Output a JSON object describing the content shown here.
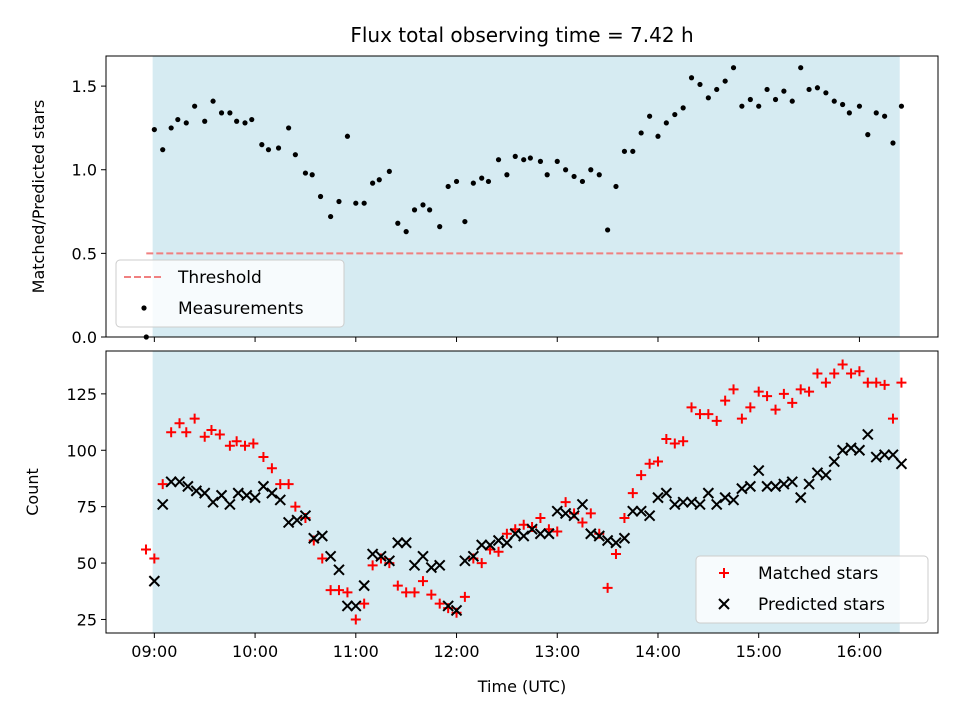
{
  "colors": {
    "shade": "#add8e6",
    "threshold": "#f08080",
    "matched": "#ff0000",
    "predicted": "#000000",
    "measurement": "#000000"
  },
  "chart_data": [
    {
      "type": "scatter",
      "title": "Flux total observing time = 7.42 h",
      "xlabel": "",
      "ylabel": "Matched/Predicted stars",
      "xlim": [
        8.52,
        16.78
      ],
      "ylim": [
        0,
        1.68
      ],
      "yticks": [
        0.0,
        0.5,
        1.0,
        1.5
      ],
      "ytick_labels": [
        "0.0",
        "0.5",
        "1.0",
        "1.5"
      ],
      "observing_window": [
        8.983,
        16.4
      ],
      "threshold": {
        "label": "Threshold",
        "value": 0.5,
        "x_range": [
          8.92,
          16.43
        ]
      },
      "legend": [
        "Threshold",
        "Measurements"
      ],
      "legend_position": "lower-left",
      "series": [
        {
          "name": "Measurements",
          "marker": "dot",
          "x": [
            8.92,
            9.0,
            9.083,
            9.167,
            9.233,
            9.317,
            9.4,
            9.5,
            9.583,
            9.667,
            9.75,
            9.817,
            9.9,
            9.967,
            10.067,
            10.133,
            10.233,
            10.333,
            10.4,
            10.5,
            10.567,
            10.65,
            10.75,
            10.833,
            10.917,
            11.0,
            11.083,
            11.167,
            11.233,
            11.333,
            11.417,
            11.5,
            11.583,
            11.667,
            11.733,
            11.833,
            11.917,
            12.0,
            12.083,
            12.167,
            12.25,
            12.317,
            12.417,
            12.5,
            12.583,
            12.667,
            12.733,
            12.833,
            12.9,
            13.0,
            13.083,
            13.167,
            13.25,
            13.333,
            13.417,
            13.5,
            13.583,
            13.667,
            13.75,
            13.833,
            13.917,
            14.0,
            14.083,
            14.167,
            14.25,
            14.333,
            14.417,
            14.5,
            14.583,
            14.667,
            14.75,
            14.833,
            14.917,
            15.0,
            15.083,
            15.167,
            15.25,
            15.333,
            15.417,
            15.5,
            15.583,
            15.667,
            15.75,
            15.833,
            15.9,
            16.0,
            16.083,
            16.167,
            16.25,
            16.333,
            16.417
          ],
          "y": [
            0.0,
            1.24,
            1.12,
            1.25,
            1.3,
            1.28,
            1.38,
            1.29,
            1.41,
            1.34,
            1.34,
            1.29,
            1.28,
            1.3,
            1.15,
            1.12,
            1.13,
            1.25,
            1.09,
            0.98,
            0.97,
            0.84,
            0.72,
            0.81,
            1.2,
            0.8,
            0.8,
            0.92,
            0.94,
            0.99,
            0.68,
            0.63,
            0.76,
            0.79,
            0.76,
            0.66,
            0.9,
            0.93,
            0.69,
            0.92,
            0.95,
            0.93,
            1.06,
            0.97,
            1.08,
            1.06,
            1.07,
            1.05,
            0.97,
            1.05,
            1.0,
            0.96,
            0.93,
            1.0,
            0.97,
            0.64,
            0.9,
            1.11,
            1.11,
            1.22,
            1.32,
            1.2,
            1.28,
            1.33,
            1.37,
            1.55,
            1.51,
            1.43,
            1.48,
            1.53,
            1.61,
            1.38,
            1.42,
            1.38,
            1.48,
            1.42,
            1.47,
            1.41,
            1.61,
            1.48,
            1.49,
            1.46,
            1.41,
            1.39,
            1.34,
            1.38,
            1.21,
            1.34,
            1.32,
            1.16,
            1.38
          ]
        }
      ]
    },
    {
      "type": "scatter",
      "title": "",
      "xlabel": "Time (UTC)",
      "ylabel": "Count",
      "xlim": [
        8.52,
        16.78
      ],
      "ylim": [
        19,
        144
      ],
      "xticks": [
        9,
        10,
        11,
        12,
        13,
        14,
        15,
        16
      ],
      "xtick_labels": [
        "09:00",
        "10:00",
        "11:00",
        "12:00",
        "13:00",
        "14:00",
        "15:00",
        "16:00"
      ],
      "yticks": [
        25,
        50,
        75,
        100,
        125
      ],
      "ytick_labels": [
        "25",
        "50",
        "75",
        "100",
        "125"
      ],
      "observing_window": [
        8.983,
        16.4
      ],
      "legend": [
        "Matched stars",
        "Predicted stars"
      ],
      "legend_position": "lower-right",
      "series": [
        {
          "name": "Matched stars",
          "marker": "plus",
          "x": [
            8.917,
            9.0,
            9.083,
            9.167,
            9.25,
            9.317,
            9.4,
            9.5,
            9.567,
            9.65,
            9.75,
            9.817,
            9.9,
            9.983,
            10.083,
            10.167,
            10.25,
            10.333,
            10.4,
            10.5,
            10.583,
            10.667,
            10.75,
            10.833,
            10.917,
            11.0,
            11.083,
            11.167,
            11.25,
            11.333,
            11.417,
            11.5,
            11.583,
            11.667,
            11.75,
            11.833,
            11.917,
            12.0,
            12.083,
            12.167,
            12.25,
            12.333,
            12.417,
            12.5,
            12.583,
            12.667,
            12.75,
            12.833,
            12.917,
            13.0,
            13.083,
            13.167,
            13.25,
            13.333,
            13.417,
            13.5,
            13.583,
            13.667,
            13.75,
            13.833,
            13.917,
            14.0,
            14.083,
            14.167,
            14.25,
            14.333,
            14.417,
            14.5,
            14.583,
            14.667,
            14.75,
            14.833,
            14.917,
            15.0,
            15.083,
            15.167,
            15.25,
            15.333,
            15.417,
            15.5,
            15.583,
            15.667,
            15.75,
            15.833,
            15.917,
            16.0,
            16.083,
            16.167,
            16.25,
            16.333,
            16.417
          ],
          "y": [
            56,
            52,
            85,
            108,
            112,
            108,
            114,
            106,
            109,
            107,
            102,
            104,
            102,
            103,
            97,
            92,
            85,
            85,
            75,
            70,
            60,
            52,
            38,
            38,
            37,
            25,
            32,
            49,
            52,
            50,
            40,
            37,
            37,
            42,
            36,
            32,
            30,
            28,
            35,
            52,
            50,
            56,
            55,
            63,
            65,
            67,
            66,
            70,
            65,
            64,
            77,
            72,
            68,
            72,
            63,
            39,
            54,
            70,
            81,
            89,
            94,
            95,
            105,
            103,
            104,
            119,
            116,
            116,
            113,
            122,
            127,
            114,
            119,
            126,
            124,
            118,
            125,
            121,
            127,
            126,
            134,
            130,
            134,
            138,
            134,
            135,
            130,
            130,
            129,
            114,
            130
          ]
        },
        {
          "name": "Predicted stars",
          "marker": "x",
          "x": [
            9.0,
            9.083,
            9.167,
            9.25,
            9.333,
            9.417,
            9.5,
            9.583,
            9.667,
            9.75,
            9.833,
            9.917,
            10.0,
            10.083,
            10.167,
            10.25,
            10.333,
            10.417,
            10.5,
            10.583,
            10.667,
            10.75,
            10.833,
            10.917,
            11.0,
            11.083,
            11.167,
            11.25,
            11.333,
            11.417,
            11.5,
            11.583,
            11.667,
            11.75,
            11.833,
            11.917,
            12.0,
            12.083,
            12.167,
            12.25,
            12.333,
            12.417,
            12.5,
            12.583,
            12.667,
            12.75,
            12.833,
            12.917,
            13.0,
            13.083,
            13.167,
            13.25,
            13.333,
            13.417,
            13.5,
            13.583,
            13.667,
            13.75,
            13.833,
            13.917,
            14.0,
            14.083,
            14.167,
            14.25,
            14.333,
            14.417,
            14.5,
            14.583,
            14.667,
            14.75,
            14.833,
            14.917,
            15.0,
            15.083,
            15.167,
            15.25,
            15.333,
            15.417,
            15.5,
            15.583,
            15.667,
            15.75,
            15.833,
            15.917,
            16.0,
            16.083,
            16.167,
            16.25,
            16.333,
            16.417
          ],
          "y": [
            42,
            76,
            86,
            86,
            84,
            82,
            81,
            77,
            80,
            76,
            81,
            80,
            79,
            84,
            81,
            78,
            68,
            69,
            71,
            61,
            62,
            53,
            47,
            31,
            31,
            40,
            54,
            53,
            51,
            59,
            59,
            49,
            53,
            48,
            49,
            31,
            29,
            51,
            53,
            58,
            58,
            60,
            59,
            63,
            62,
            65,
            63,
            63,
            73,
            72,
            71,
            76,
            63,
            62,
            60,
            59,
            61,
            73,
            73,
            71,
            79,
            81,
            76,
            77,
            77,
            76,
            81,
            76,
            79,
            78,
            83,
            84,
            91,
            84,
            84,
            85,
            86,
            79,
            85,
            90,
            89,
            95,
            100,
            101,
            100,
            107,
            97,
            98,
            98,
            94
          ]
        }
      ]
    }
  ]
}
